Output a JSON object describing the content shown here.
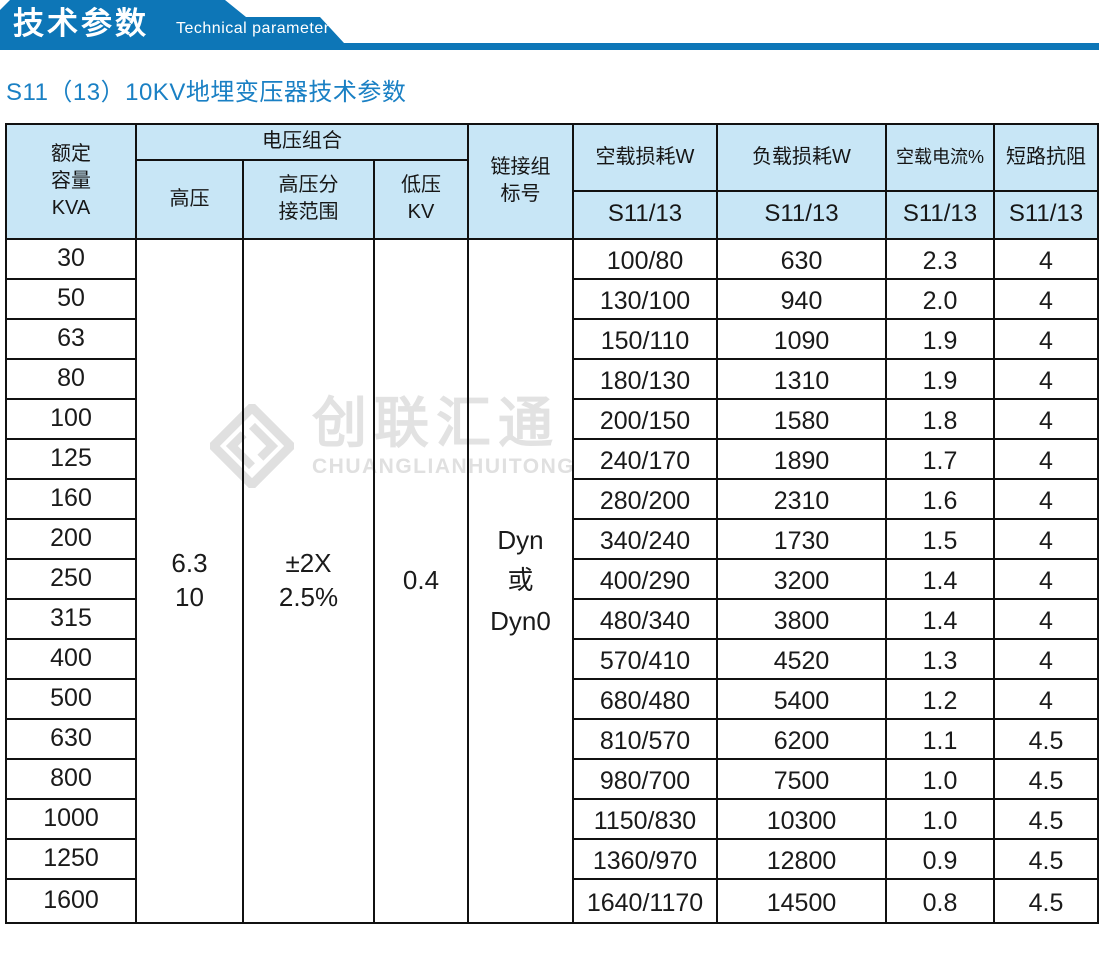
{
  "banner": {
    "title_zh": "技术参数",
    "title_en": "Technical parameter",
    "bg_color": "#0d76b7"
  },
  "page": {
    "title": "S11（13）10KV地埋变压器技术参数",
    "title_color": "#1a80c4"
  },
  "watermark": {
    "logo_icon": "diamond-knot-logo",
    "name_zh": "创联汇通",
    "name_en": "CHUANGLIANHUITONG"
  },
  "table": {
    "header": {
      "capacity": "额定\n容量\nKVA",
      "voltage_group": "电压组合",
      "hv": "高压",
      "hv_tap_range": "高压分\n接范围",
      "lv": "低压\nKV",
      "vector_group": "链接组\n标号",
      "no_load_loss": "空载损耗W",
      "load_loss": "负载损耗W",
      "no_load_current": "空载电流%",
      "impedance": "短路抗阻",
      "series": "S11/13"
    },
    "merged": {
      "hv": "6.3\n10",
      "hv_tap_range": "±2X\n2.5%",
      "lv": "0.4",
      "vector_group": "Dyn\n或\nDyn0"
    },
    "rows": [
      {
        "kva": "30",
        "no_load_loss": "100/80",
        "load_loss": "630",
        "no_load_current": "2.3",
        "impedance": "4"
      },
      {
        "kva": "50",
        "no_load_loss": "130/100",
        "load_loss": "940",
        "no_load_current": "2.0",
        "impedance": "4"
      },
      {
        "kva": "63",
        "no_load_loss": "150/110",
        "load_loss": "1090",
        "no_load_current": "1.9",
        "impedance": "4"
      },
      {
        "kva": "80",
        "no_load_loss": "180/130",
        "load_loss": "1310",
        "no_load_current": "1.9",
        "impedance": "4"
      },
      {
        "kva": "100",
        "no_load_loss": "200/150",
        "load_loss": "1580",
        "no_load_current": "1.8",
        "impedance": "4"
      },
      {
        "kva": "125",
        "no_load_loss": "240/170",
        "load_loss": "1890",
        "no_load_current": "1.7",
        "impedance": "4"
      },
      {
        "kva": "160",
        "no_load_loss": "280/200",
        "load_loss": "2310",
        "no_load_current": "1.6",
        "impedance": "4"
      },
      {
        "kva": "200",
        "no_load_loss": "340/240",
        "load_loss": "1730",
        "no_load_current": "1.5",
        "impedance": "4"
      },
      {
        "kva": "250",
        "no_load_loss": "400/290",
        "load_loss": "3200",
        "no_load_current": "1.4",
        "impedance": "4"
      },
      {
        "kva": "315",
        "no_load_loss": "480/340",
        "load_loss": "3800",
        "no_load_current": "1.4",
        "impedance": "4"
      },
      {
        "kva": "400",
        "no_load_loss": "570/410",
        "load_loss": "4520",
        "no_load_current": "1.3",
        "impedance": "4"
      },
      {
        "kva": "500",
        "no_load_loss": "680/480",
        "load_loss": "5400",
        "no_load_current": "1.2",
        "impedance": "4"
      },
      {
        "kva": "630",
        "no_load_loss": "810/570",
        "load_loss": "6200",
        "no_load_current": "1.1",
        "impedance": "4.5"
      },
      {
        "kva": "800",
        "no_load_loss": "980/700",
        "load_loss": "7500",
        "no_load_current": "1.0",
        "impedance": "4.5"
      },
      {
        "kva": "1000",
        "no_load_loss": "1150/830",
        "load_loss": "10300",
        "no_load_current": "1.0",
        "impedance": "4.5"
      },
      {
        "kva": "1250",
        "no_load_loss": "1360/970",
        "load_loss": "12800",
        "no_load_current": "0.9",
        "impedance": "4.5"
      },
      {
        "kva": "1600",
        "no_load_loss": "1640/1170",
        "load_loss": "14500",
        "no_load_current": "0.8",
        "impedance": "4.5"
      }
    ]
  }
}
